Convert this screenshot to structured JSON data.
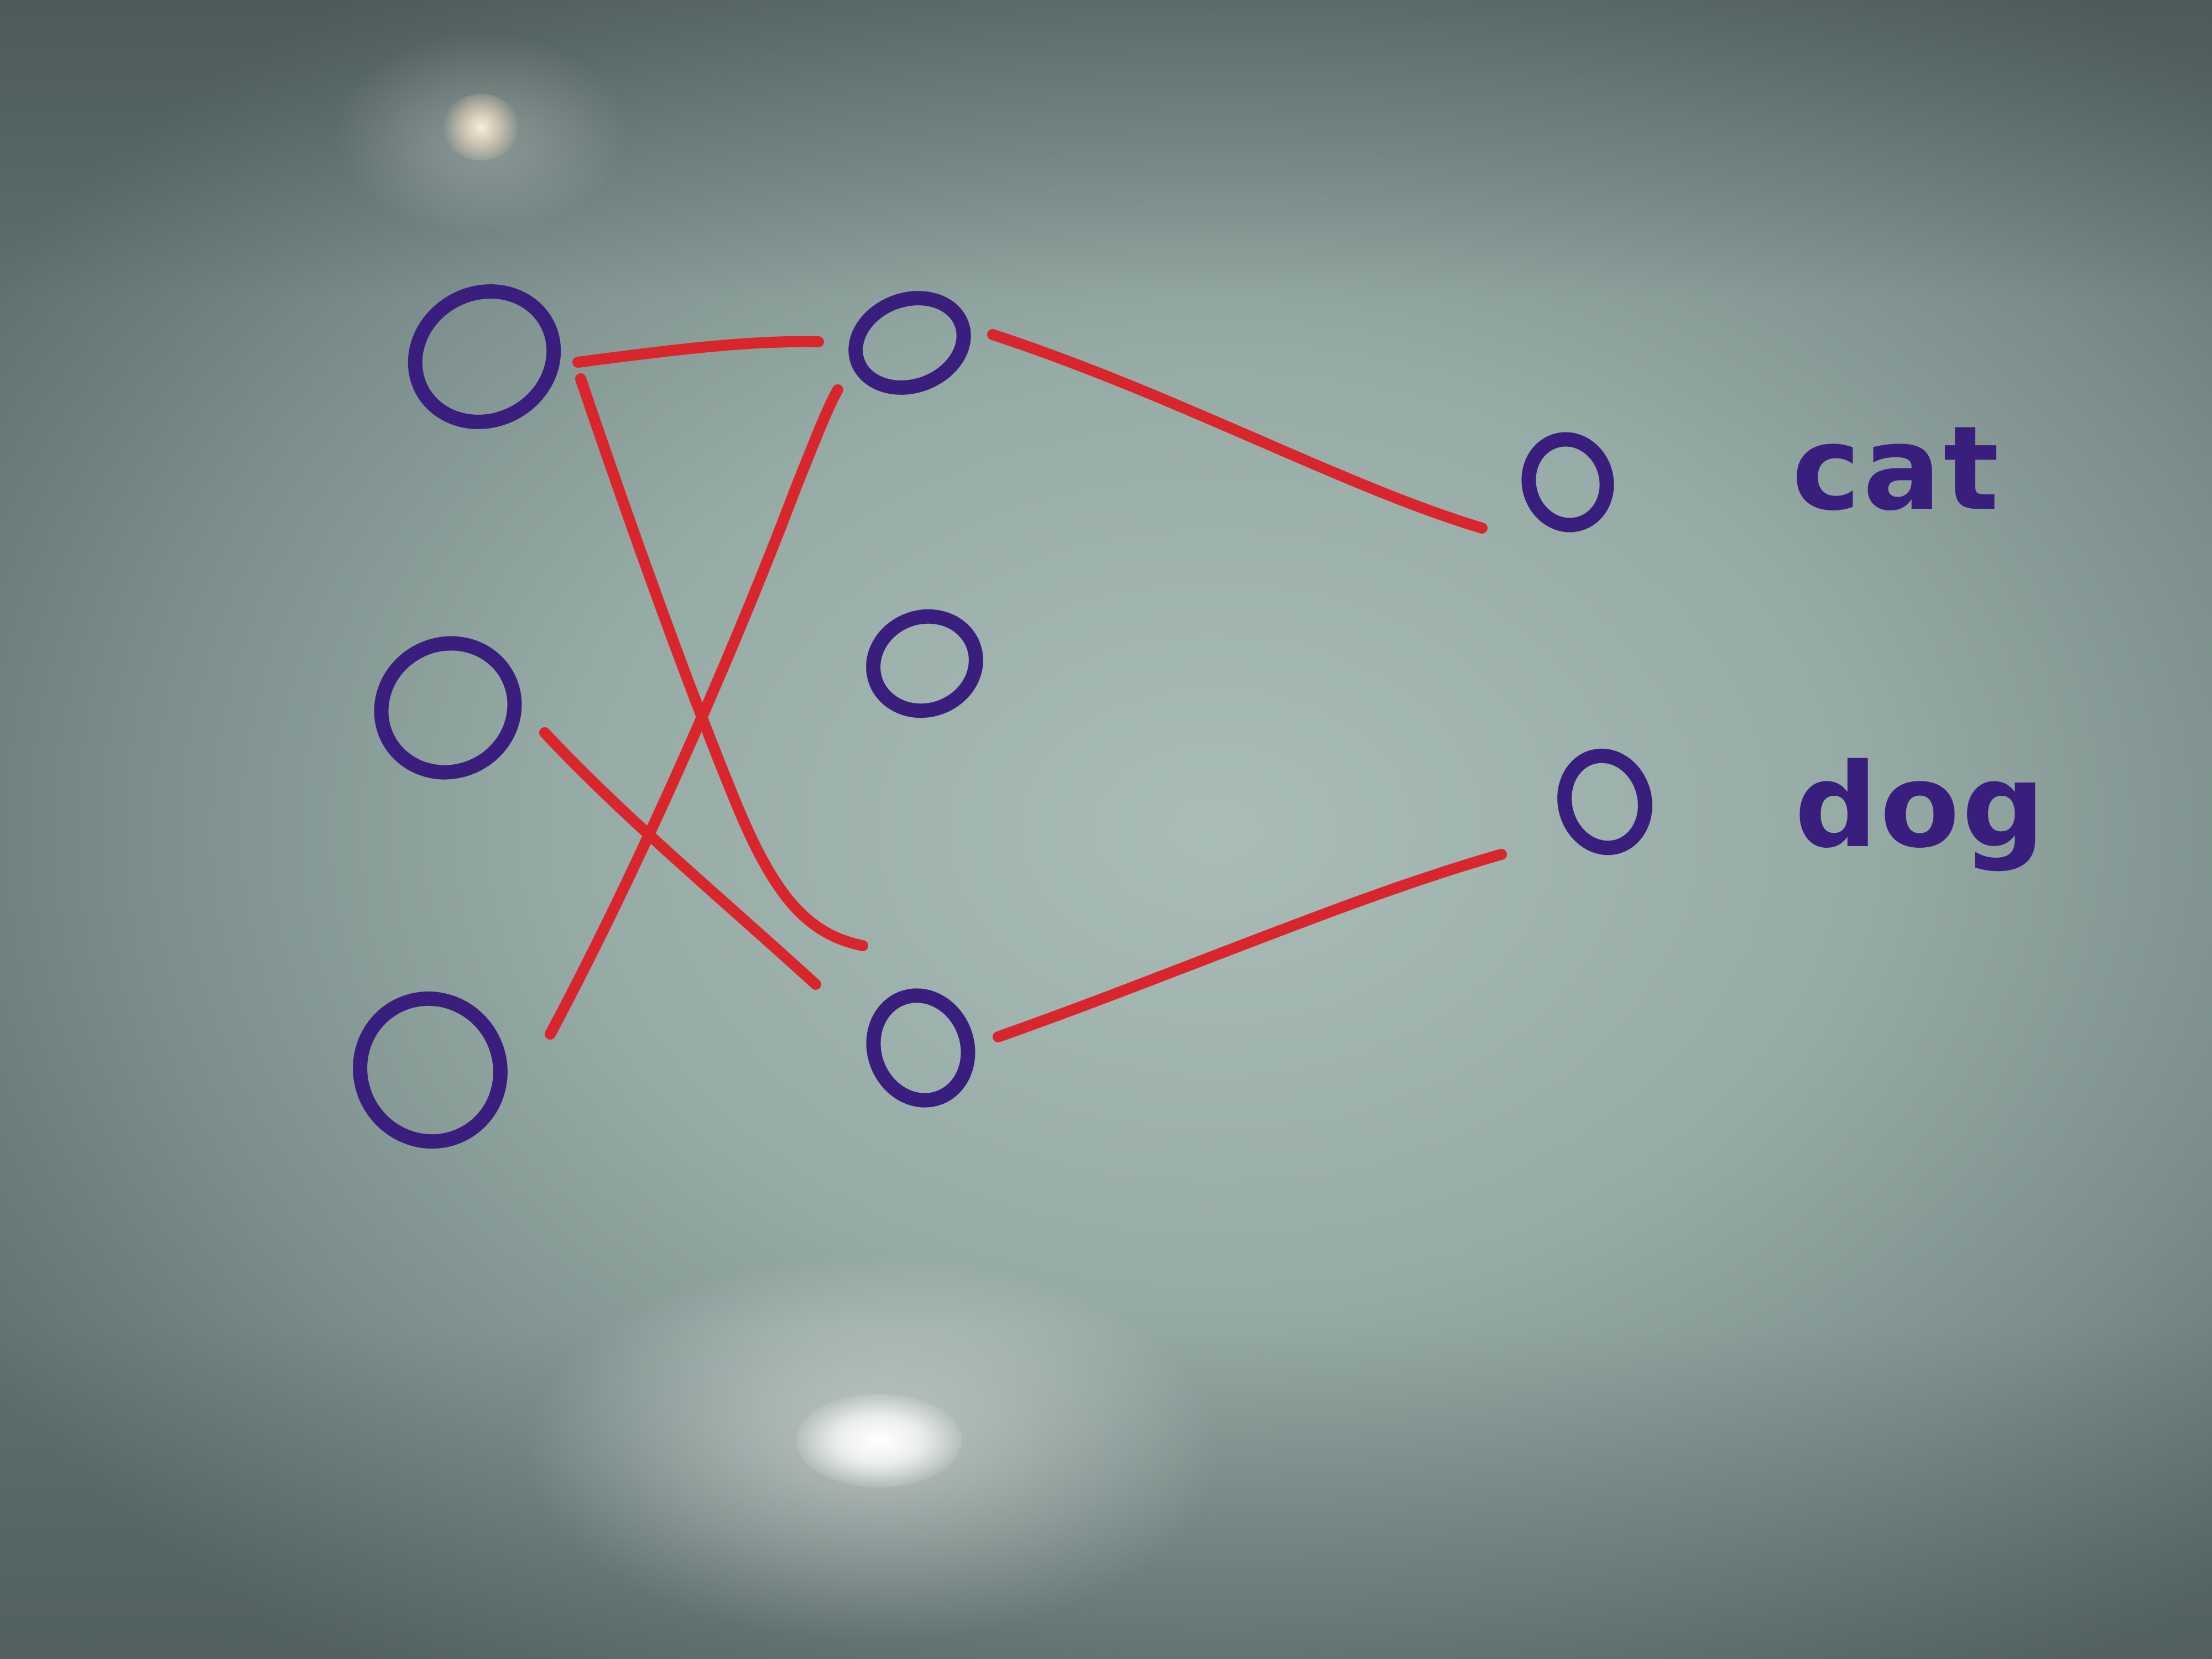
{
  "diagram": {
    "labels": {
      "cat": "cat",
      "dog": "dog"
    },
    "colors": {
      "nodes": "#3a1e7e",
      "edges": "#d8262c",
      "board": "#a9bcb7"
    }
  }
}
